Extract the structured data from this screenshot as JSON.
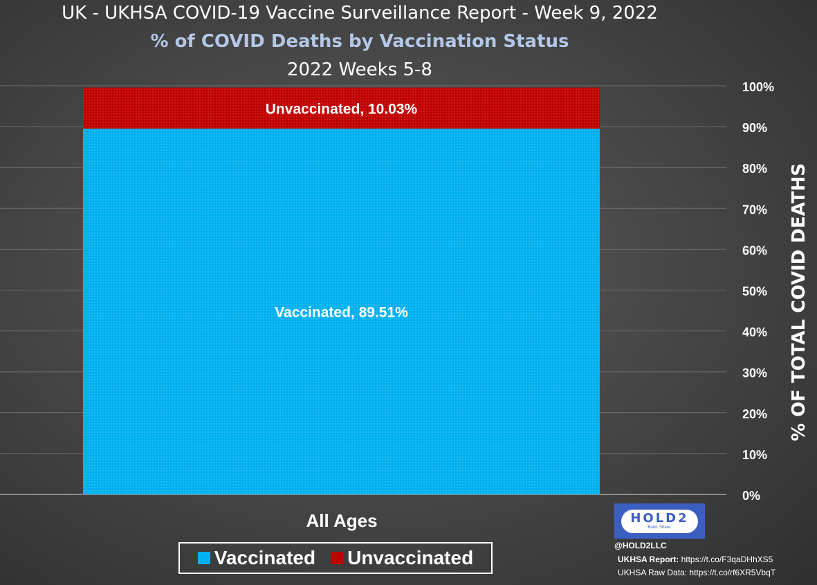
{
  "title": "UK - UKHSA COVID-19 Vaccine Surveillance Report - Week 9, 2022",
  "subtitle": "% of COVID Deaths by Vaccination Status",
  "subtitle2": "2022 Weeks 5-8",
  "colors": {
    "vaccinated": "#00b0f0",
    "unvaccinated": "#c00000",
    "subtitle": "#b4c7e7",
    "logo": "#3b5fc0"
  },
  "chart_data": {
    "type": "bar",
    "stacked": true,
    "categories": [
      "All Ages"
    ],
    "series": [
      {
        "name": "Vaccinated",
        "values": [
          89.51
        ],
        "label": "Vaccinated, 89.51%"
      },
      {
        "name": "Unvaccinated",
        "values": [
          10.03
        ],
        "label": "Unvaccinated, 10.03%"
      }
    ],
    "ylabel": "% OF TOTAL COVID DEATHS",
    "ylim": [
      0,
      100
    ],
    "yticks": [
      "0%",
      "10%",
      "20%",
      "30%",
      "40%",
      "50%",
      "60%",
      "70%",
      "80%",
      "90%",
      "100%"
    ],
    "y_axis_side": "right",
    "grid": true,
    "legend_position": "bottom"
  },
  "legend": {
    "vaccinated_label": "Vaccinated",
    "unvaccinated_label": "Unvaccinated"
  },
  "logo": {
    "text": "HOLD2",
    "tagline": "Build. Share."
  },
  "handle": "@HOLD2LLC",
  "sources": {
    "report_label": "UKHSA Report:",
    "report_url": "https://t.co/F3qaDHhXS5",
    "raw_label": "UKHSA Raw Data:",
    "raw_url": "https://t.co/rf6XR5VbqT"
  }
}
